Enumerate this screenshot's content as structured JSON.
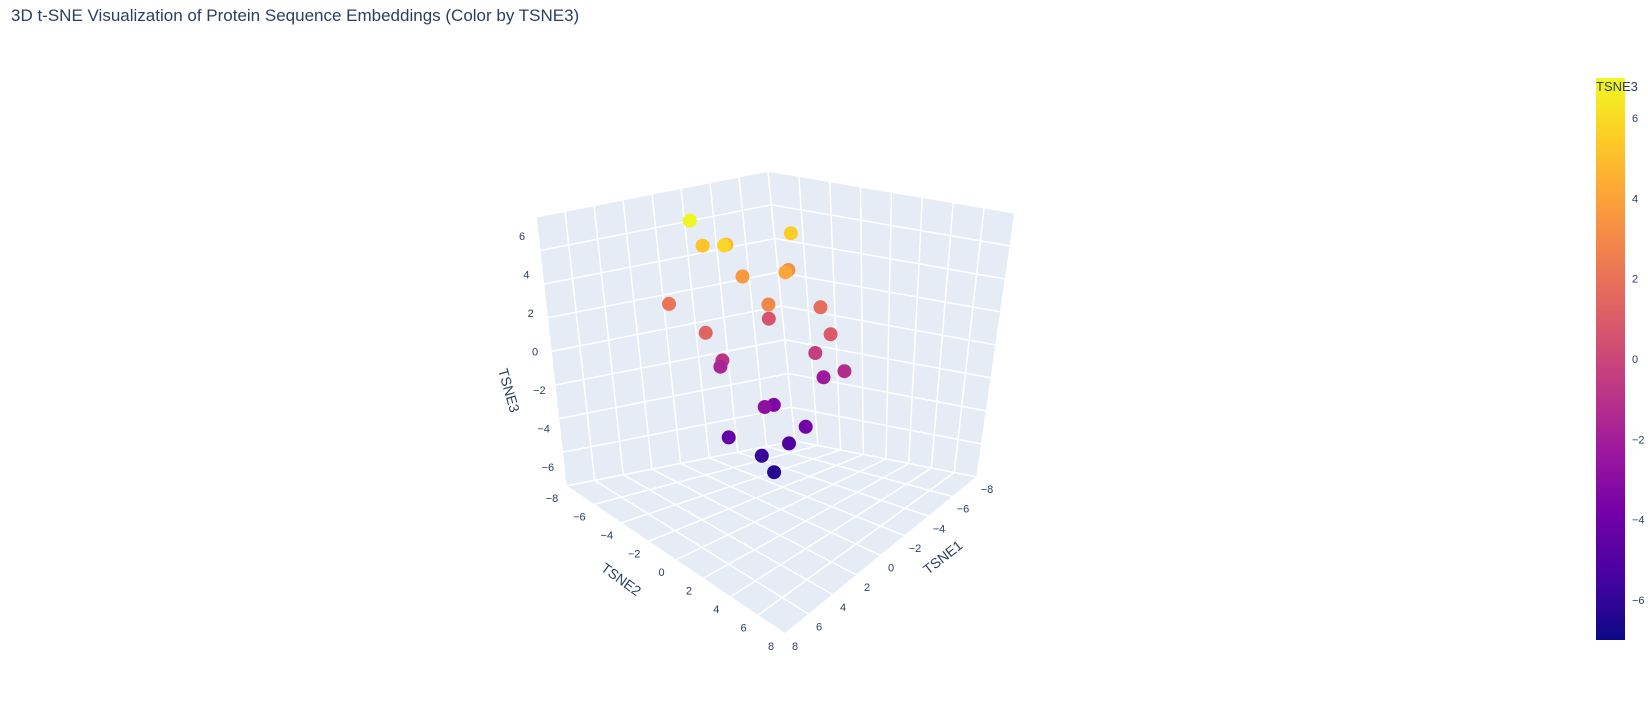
{
  "chart_data": {
    "type": "scatter",
    "title": "3D t-SNE Visualization of Protein Sequence Embeddings (Color by TSNE3)",
    "xlabel": "TSNE1",
    "ylabel": "TSNE2",
    "zlabel": "TSNE3",
    "xlim": [
      -8,
      8
    ],
    "ylim": [
      -8,
      8
    ],
    "zlim": [
      -7,
      7
    ],
    "x_ticks": [
      "−8",
      "−6",
      "−4",
      "−2",
      "0",
      "2",
      "4",
      "6",
      "8"
    ],
    "y_ticks": [
      "−8",
      "−6",
      "−4",
      "−2",
      "0",
      "2",
      "4",
      "6",
      "8"
    ],
    "z_ticks": [
      "−6",
      "−4",
      "−2",
      "0",
      "2",
      "4",
      "6"
    ],
    "colorbar": {
      "title": "TSNE3",
      "range": [
        -7,
        7
      ],
      "ticks": [
        "−6",
        "−4",
        "−2",
        "0",
        "2",
        "4",
        "6"
      ],
      "colorscale": [
        "#0d0887",
        "#46039f",
        "#7201a8",
        "#9c179e",
        "#bd3786",
        "#d8576b",
        "#ed7953",
        "#fb9f3a",
        "#fdca26",
        "#f0f921"
      ]
    },
    "points": [
      [
        -2.1,
        -1.5,
        5.2
      ],
      [
        -0.8,
        -3.2,
        6.9
      ],
      [
        1.4,
        -2.7,
        5.8
      ],
      [
        -3.5,
        1.2,
        4.7
      ],
      [
        2.6,
        0.4,
        4.1
      ],
      [
        0.3,
        2.8,
        5.5
      ],
      [
        -1.7,
        3.9,
        3.2
      ],
      [
        3.8,
        -1.9,
        2.9
      ],
      [
        -4.2,
        -2.6,
        2.1
      ],
      [
        1.9,
        3.1,
        1.8
      ],
      [
        -0.5,
        -0.2,
        3.6
      ],
      [
        4.4,
        1.7,
        0.9
      ],
      [
        -3.1,
        3.3,
        0.6
      ],
      [
        0.8,
        -4.1,
        1.4
      ],
      [
        2.2,
        2.2,
        -0.4
      ],
      [
        -2.4,
        -0.7,
        -0.9
      ],
      [
        3.6,
        3.0,
        -1.3
      ],
      [
        -4.6,
        0.8,
        -1.7
      ],
      [
        0.1,
        4.2,
        -2.2
      ],
      [
        1.5,
        -1.1,
        -2.8
      ],
      [
        -1.2,
        1.6,
        -3.4
      ],
      [
        2.9,
        0.5,
        -3.9
      ],
      [
        -0.3,
        -2.4,
        -4.4
      ],
      [
        0.6,
        1.0,
        -5.1
      ],
      [
        -0.9,
        0.2,
        -5.8
      ],
      [
        1.1,
        -0.6,
        -6.3
      ]
    ]
  }
}
